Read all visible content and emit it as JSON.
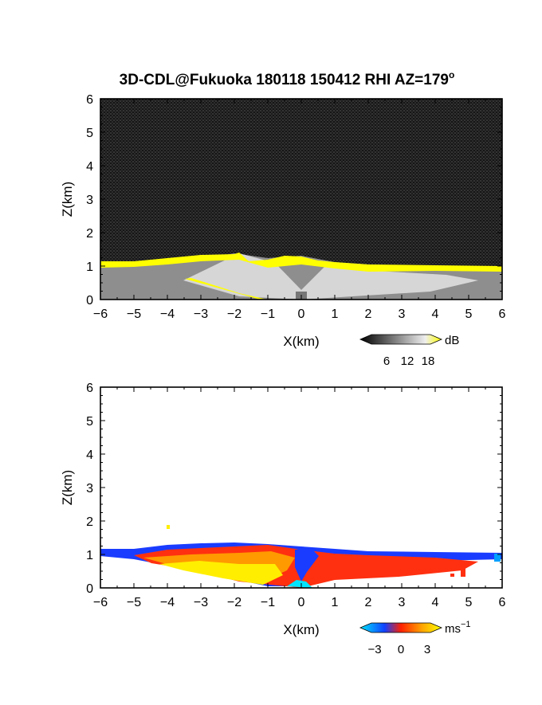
{
  "title": "3D-CDL@Fukuoka 180118 150412 RHI AZ=179",
  "title_superscript": "o",
  "chart_data": [
    {
      "type": "heatmap",
      "quantity": "reflectivity",
      "xlabel": "X(km)",
      "ylabel": "Z(km)",
      "xlim": [
        -6,
        6
      ],
      "ylim": [
        0,
        6
      ],
      "xticks": [
        "-6",
        "-5",
        "-4",
        "-3",
        "-2",
        "-1",
        "0",
        "1",
        "2",
        "3",
        "4",
        "5",
        "6"
      ],
      "yticks": [
        "0",
        "1",
        "2",
        "3",
        "4",
        "5",
        "6"
      ],
      "colorbar": {
        "unit": "dB",
        "ticks": [
          "6",
          "12",
          "18"
        ],
        "range": [
          0,
          21
        ],
        "colors": [
          "#000000",
          "#ffffff",
          "#ffff00"
        ]
      },
      "layer_top_km": [
        [
          -6,
          1.1
        ],
        [
          -5,
          1.1
        ],
        [
          -4.5,
          1.15
        ],
        [
          -4,
          1.2
        ],
        [
          -3.5,
          1.22
        ],
        [
          -3,
          1.2
        ],
        [
          -2.5,
          1.3
        ],
        [
          -2,
          1.38
        ],
        [
          -1.5,
          1.25
        ],
        [
          -1,
          1.2
        ],
        [
          -0.5,
          1.35
        ],
        [
          0,
          1.32
        ],
        [
          0.5,
          1.25
        ],
        [
          1,
          1.2
        ],
        [
          1.5,
          1.15
        ],
        [
          2,
          1.05
        ],
        [
          3,
          1.05
        ],
        [
          4,
          1.0
        ],
        [
          5,
          1.0
        ],
        [
          6,
          1.0
        ]
      ]
    },
    {
      "type": "heatmap",
      "quantity": "doppler velocity",
      "xlabel": "X(km)",
      "ylabel": "Z(km)",
      "xlim": [
        -6,
        6
      ],
      "ylim": [
        0,
        6
      ],
      "xticks": [
        "-6",
        "-5",
        "-4",
        "-3",
        "-2",
        "-1",
        "0",
        "1",
        "2",
        "3",
        "4",
        "5",
        "6"
      ],
      "yticks": [
        "0",
        "1",
        "2",
        "3",
        "4",
        "5",
        "6"
      ],
      "colorbar": {
        "unit": "ms",
        "unit_superscript": "−1",
        "ticks": [
          "−3",
          "0",
          "3"
        ],
        "range": [
          -4,
          4
        ],
        "colors": [
          "#00e5ff",
          "#1040ff",
          "#ff2000",
          "#ffa000",
          "#ffff00"
        ]
      }
    }
  ]
}
